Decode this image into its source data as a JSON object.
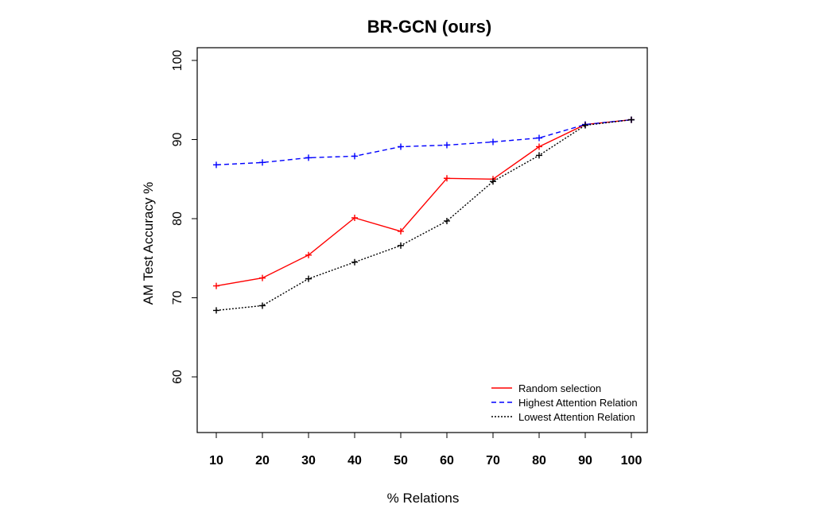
{
  "chart_data": {
    "type": "line",
    "title": "BR-GCN (ours)",
    "xlabel": "% Relations",
    "ylabel": "AM Test Accuracy %",
    "x": [
      10,
      20,
      30,
      40,
      50,
      60,
      70,
      80,
      90,
      100
    ],
    "x_ticks": [
      "10",
      "20",
      "30",
      "40",
      "50",
      "60",
      "70",
      "80",
      "90",
      "100"
    ],
    "y_ticks": [
      "60",
      "70",
      "80",
      "90",
      "100"
    ],
    "xlim": [
      10,
      100
    ],
    "ylim": [
      53,
      100
    ],
    "legend_position": "bottom-right",
    "grid": false,
    "series": [
      {
        "name": "Random selection",
        "color": "#ff0000",
        "dash": "solid",
        "values": [
          71.5,
          72.5,
          75.4,
          80.1,
          78.4,
          85.1,
          85.0,
          89.1,
          91.9,
          92.5
        ]
      },
      {
        "name": "Highest Attention Relation",
        "color": "#0000ff",
        "dash": "dashed",
        "values": [
          86.8,
          87.1,
          87.7,
          87.9,
          89.1,
          89.3,
          89.7,
          90.2,
          91.9,
          92.5
        ]
      },
      {
        "name": "Lowest Attention Relation",
        "color": "#000000",
        "dash": "dotted",
        "values": [
          68.4,
          69.0,
          72.4,
          74.5,
          76.6,
          79.7,
          84.7,
          88.0,
          91.8,
          92.5
        ]
      }
    ]
  }
}
